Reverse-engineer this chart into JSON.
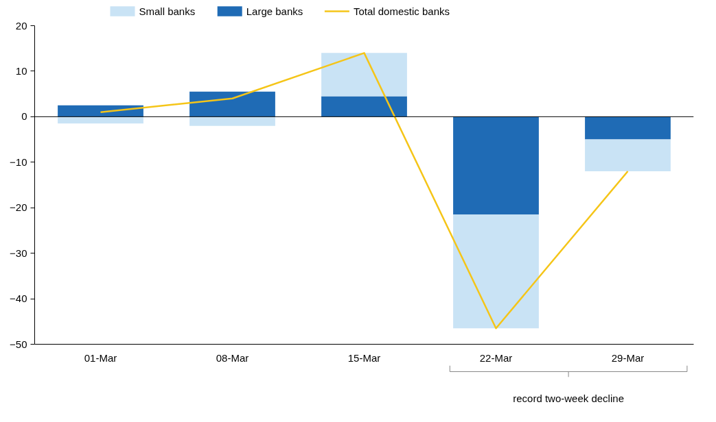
{
  "chart_data": {
    "type": "bar",
    "stacked": true,
    "categories": [
      "01-Mar",
      "08-Mar",
      "15-Mar",
      "22-Mar",
      "29-Mar"
    ],
    "series": [
      {
        "name": "Large banks",
        "color": "#1f6bb5",
        "values": [
          2.5,
          5.5,
          4.5,
          -21.5,
          -5
        ]
      },
      {
        "name": "Small banks",
        "color": "#c9e3f5",
        "values": [
          -1.5,
          -2,
          9.5,
          -25,
          -7
        ]
      },
      {
        "name": "Total domestic banks",
        "type": "line",
        "color": "#f5c518",
        "values": [
          1,
          4,
          14,
          -46.5,
          -12
        ]
      }
    ],
    "ylim": [
      -50,
      20
    ],
    "yticks": [
      -50,
      -40,
      -30,
      -20,
      -10,
      0,
      10,
      20
    ],
    "ref_lines": [
      {
        "axis": "y",
        "value": 0,
        "color": "#000000"
      }
    ],
    "annotations": [
      "record two-week decline"
    ],
    "grid": false,
    "legend": "top",
    "marker": "none",
    "line_style": "solid"
  }
}
